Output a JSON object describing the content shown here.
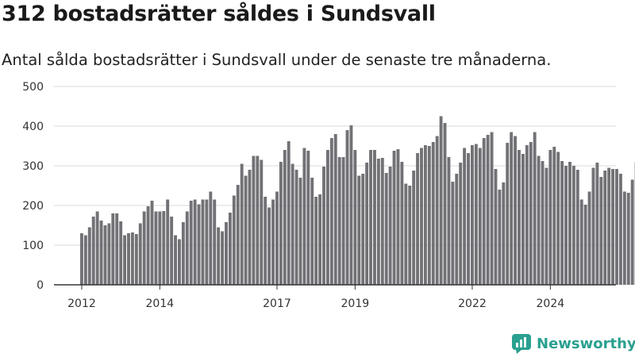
{
  "header": {
    "title": "312 bostadsrätter såldes i Sundsvall",
    "subtitle": "Antal sålda bostadsrätter i Sundsvall under de senaste tre månaderna."
  },
  "brand": {
    "name": "Newsworthy",
    "color": "#2aa090"
  },
  "colors": {
    "bar": "#727176",
    "highlight": "#2a9d8f",
    "grid": "#d9d9d9"
  },
  "chart_data": {
    "type": "bar",
    "title": "312 bostadsrätter såldes i Sundsvall",
    "subtitle": "Antal sålda bostadsrätter i Sundsvall under de senaste tre månaderna.",
    "xlabel": "",
    "ylabel": "",
    "ylim": [
      0,
      500
    ],
    "yticks": [
      0,
      100,
      200,
      300,
      400,
      500
    ],
    "xticks": [
      {
        "label": "2012",
        "index": 0
      },
      {
        "label": "2014",
        "index": 20
      },
      {
        "label": "2017",
        "index": 50
      },
      {
        "label": "2019",
        "index": 70
      },
      {
        "label": "2022",
        "index": 100
      },
      {
        "label": "2024",
        "index": 120
      }
    ],
    "grid": true,
    "legend": "none",
    "highlight_last": true,
    "last_value_label": "312",
    "values": [
      130,
      125,
      145,
      172,
      185,
      162,
      150,
      155,
      180,
      180,
      160,
      125,
      130,
      132,
      128,
      155,
      185,
      198,
      212,
      185,
      185,
      186,
      215,
      172,
      125,
      115,
      158,
      185,
      212,
      215,
      203,
      215,
      215,
      235,
      215,
      145,
      135,
      158,
      182,
      225,
      252,
      305,
      275,
      290,
      325,
      325,
      315,
      222,
      195,
      215,
      235,
      310,
      340,
      362,
      305,
      290,
      270,
      345,
      338,
      270,
      222,
      228,
      298,
      340,
      370,
      380,
      322,
      322,
      390,
      402,
      340,
      275,
      280,
      308,
      340,
      340,
      318,
      320,
      282,
      298,
      338,
      342,
      310,
      255,
      250,
      288,
      332,
      345,
      352,
      350,
      360,
      375,
      425,
      408,
      322,
      260,
      280,
      308,
      345,
      332,
      352,
      355,
      345,
      370,
      378,
      385,
      292,
      240,
      258,
      358,
      385,
      375,
      340,
      330,
      352,
      360,
      385,
      325,
      312,
      295,
      340,
      348,
      335,
      312,
      300,
      310,
      300,
      290,
      215,
      202,
      235,
      295,
      308,
      272,
      288,
      295,
      292,
      292,
      280,
      235,
      232,
      265,
      310,
      342,
      335,
      332,
      322,
      318,
      318,
      322,
      332,
      312
    ]
  }
}
